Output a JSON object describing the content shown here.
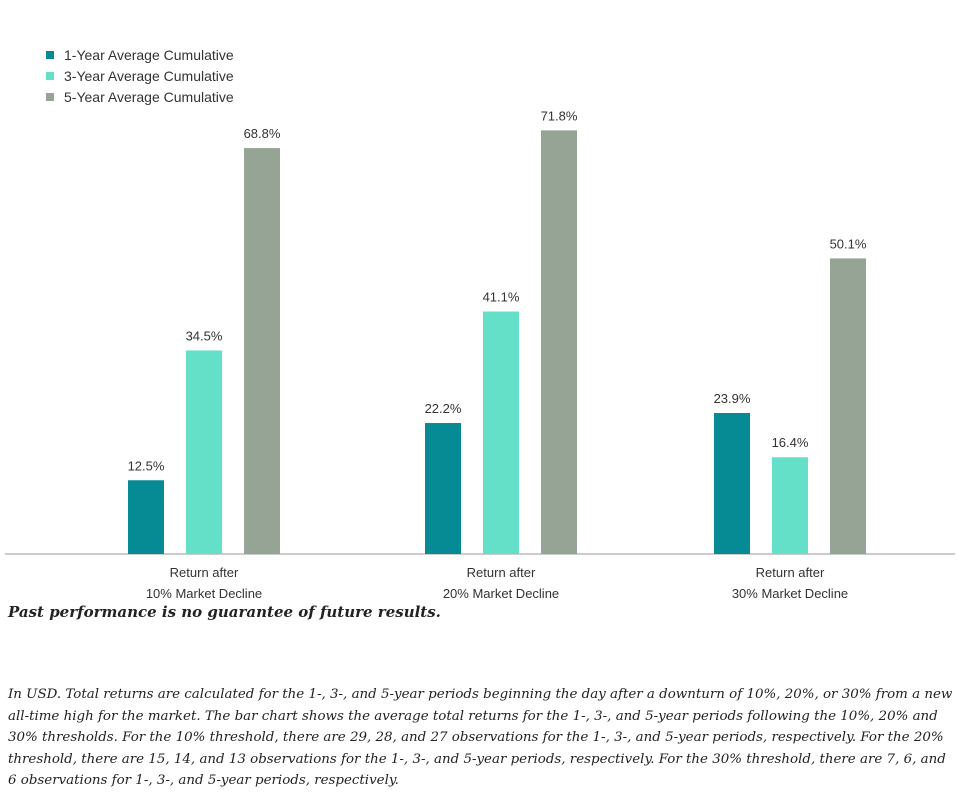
{
  "chart_data": {
    "type": "bar",
    "categories": [
      [
        "Return after",
        "10% Market Decline"
      ],
      [
        "Return after",
        "20% Market Decline"
      ],
      [
        "Return after",
        "30% Market Decline"
      ]
    ],
    "series": [
      {
        "name": "1-Year Average Cumulative",
        "color": "#068b94",
        "values": [
          12.5,
          22.2,
          23.9
        ],
        "labels": [
          "12.5%",
          "22.2%",
          "23.9%"
        ]
      },
      {
        "name": "3-Year Average Cumulative",
        "color": "#64e0c9",
        "values": [
          34.5,
          41.1,
          16.4
        ],
        "labels": [
          "34.5%",
          "41.1%",
          "16.4%"
        ]
      },
      {
        "name": "5-Year Average Cumulative",
        "color": "#95a495",
        "values": [
          68.8,
          71.8,
          50.1
        ],
        "labels": [
          "68.8%",
          "71.8%",
          "50.1%"
        ]
      }
    ],
    "ylim": [
      0,
      80
    ],
    "grid": false,
    "legend": "top-left"
  },
  "disclaimer": "Past performance is no guarantee of future results.",
  "footnote": "In USD. Total returns are calculated for the 1-, 3-, and 5-year periods beginning the day after a downturn of 10%, 20%, or 30% from a new all-time high for the market. The bar chart shows the average total returns for the 1-, 3-, and 5-year periods following the 10%, 20% and 30% thresholds. For the 10% threshold, there are 29, 28, and 27 observations for the 1-, 3-, and 5-year periods, respectively. For the 20% threshold, there are 15, 14, and 13 observations for the 1-, 3-, and 5-year periods, respectively. For the 30% threshold, there are 7, 6, and 6 observations for 1-, 3-, and 5-year periods, respectively."
}
